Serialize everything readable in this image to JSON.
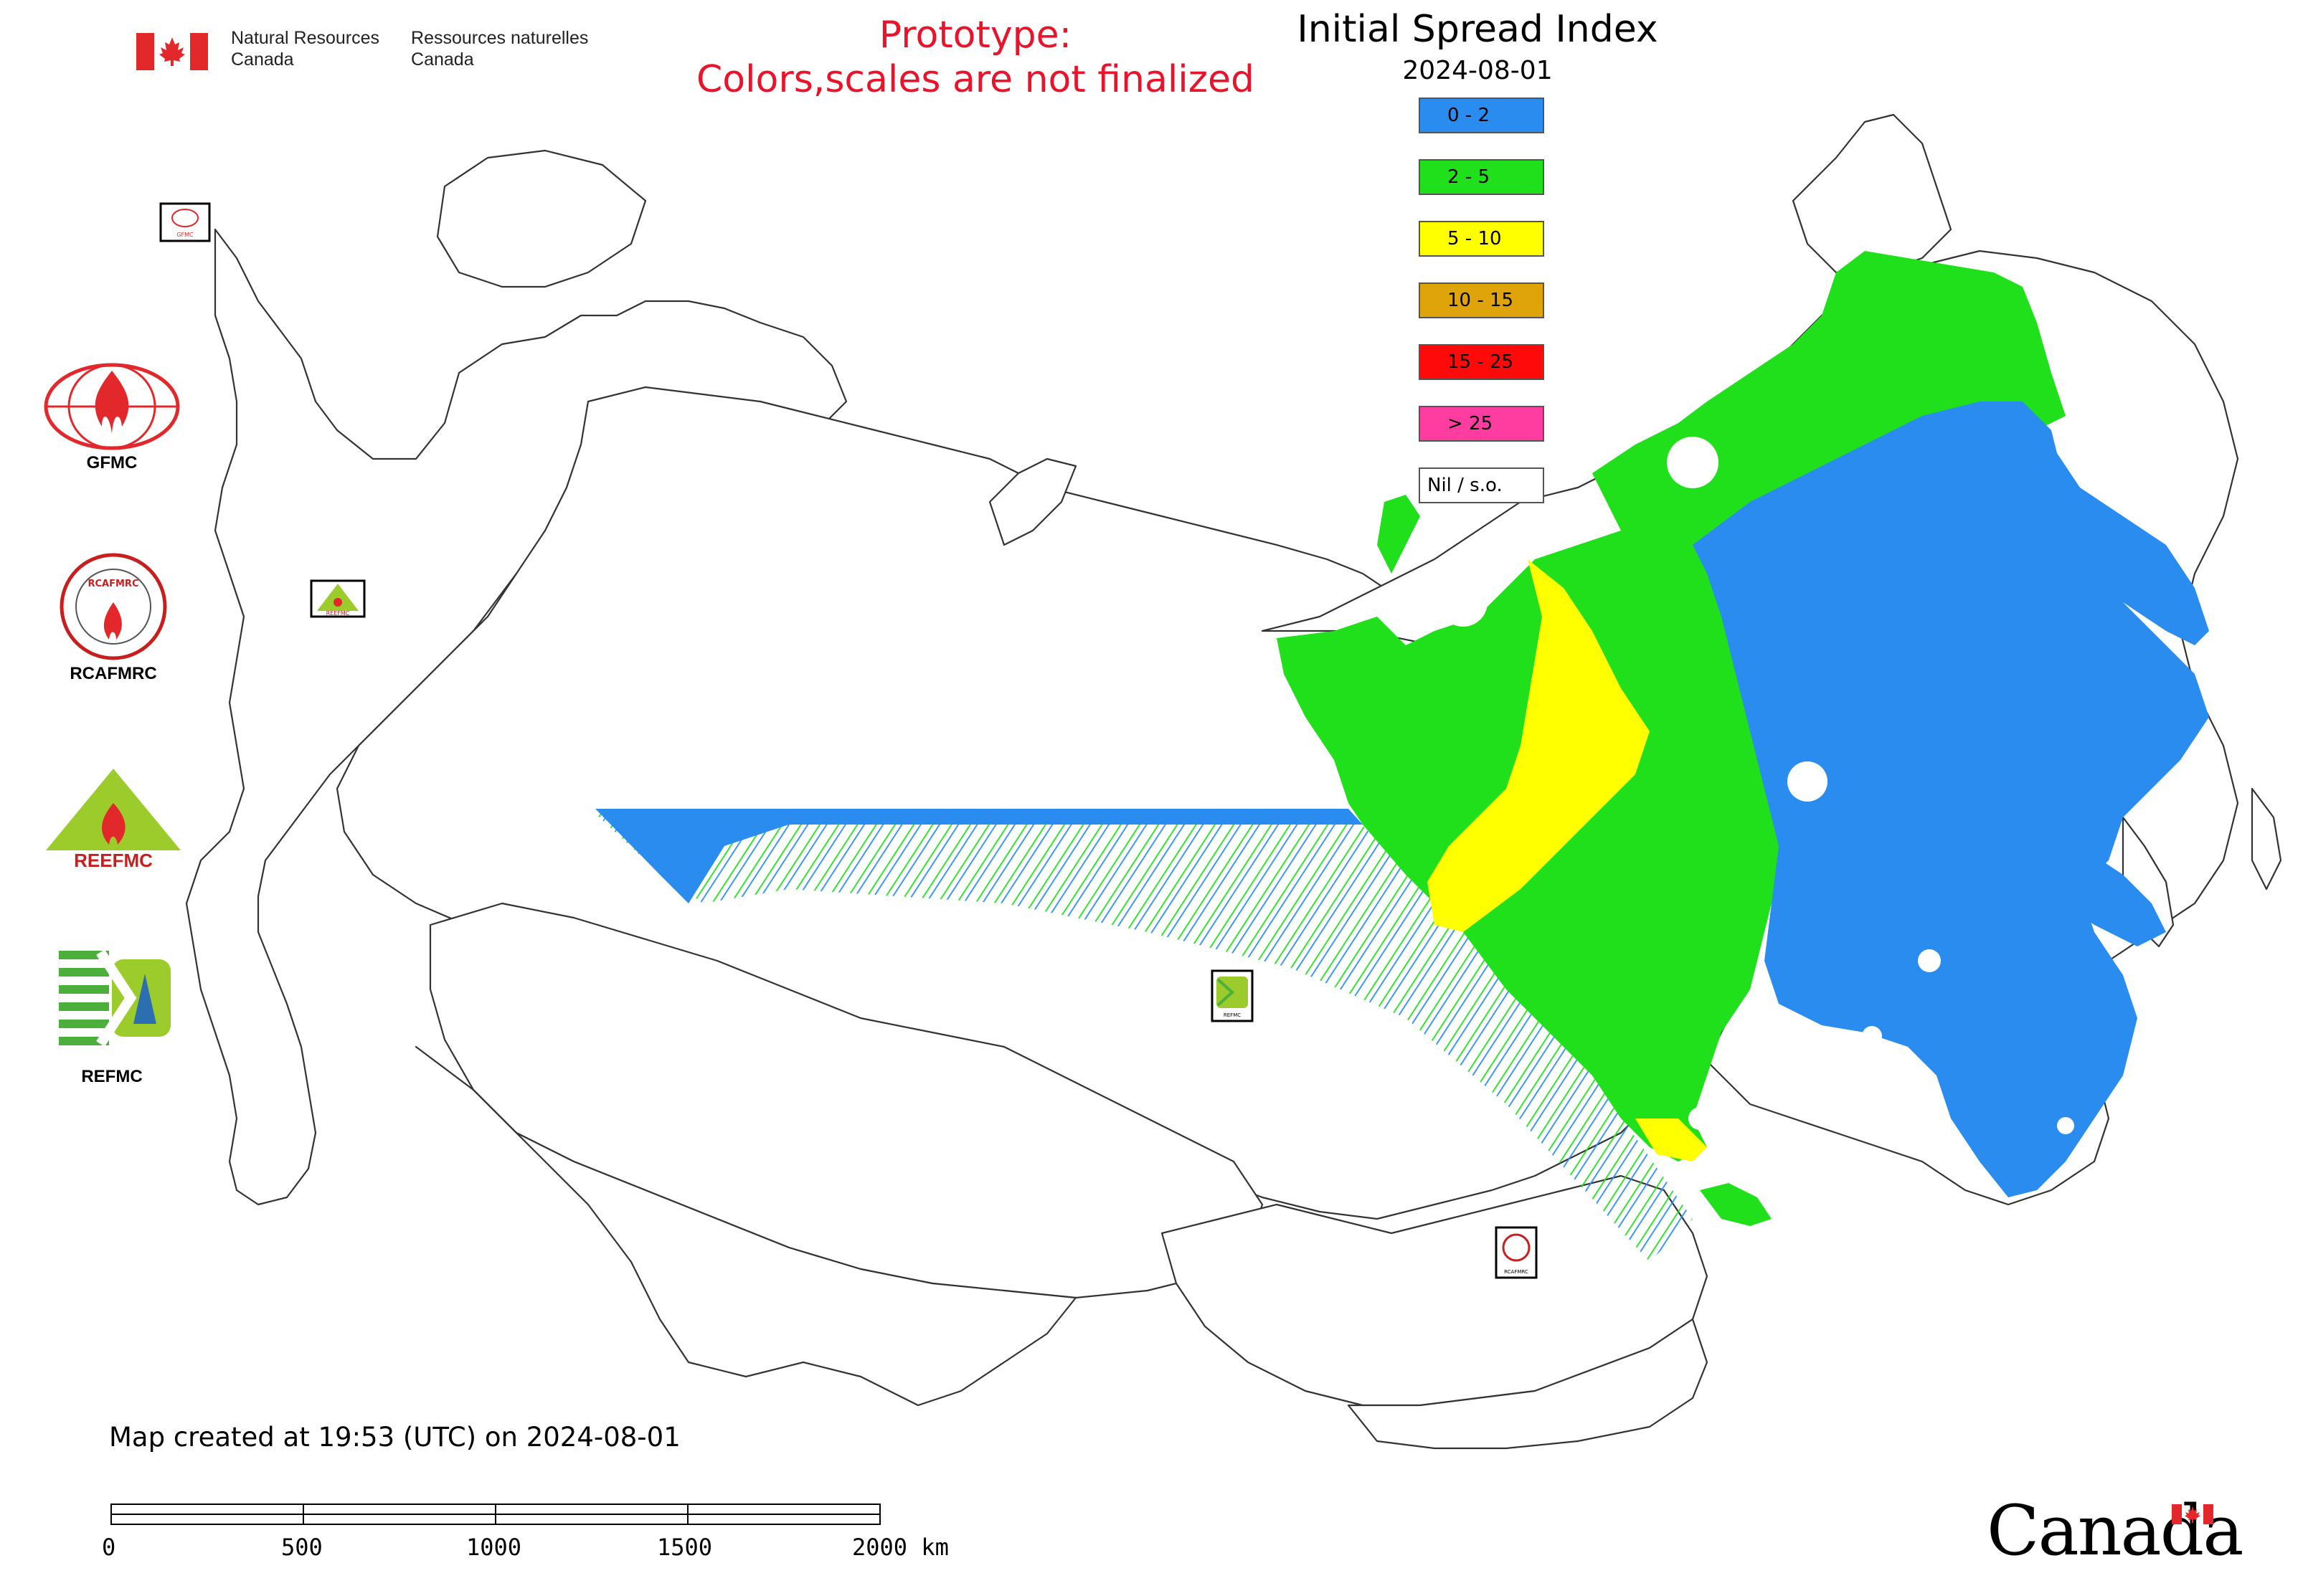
{
  "header": {
    "org_en_1": "Natural Resources",
    "org_en_2": "Canada",
    "org_fr_1": "Ressources naturelles",
    "org_fr_2": "Canada"
  },
  "notice": {
    "line1": "Prototype:",
    "line2": "Colors,scales are not finalized",
    "color": "#e8142b"
  },
  "title": "Initial Spread Index",
  "date": "2024-08-01",
  "legend": [
    {
      "label": "0 - 2",
      "color": "#2b8cf0"
    },
    {
      "label": "2 - 5",
      "color": "#1fe01b"
    },
    {
      "label": "5 - 10",
      "color": "#ffff00"
    },
    {
      "label": "10 - 15",
      "color": "#dfa40a"
    },
    {
      "label": "15 - 25",
      "color": "#ff0a0a"
    },
    {
      "label": "> 25",
      "color": "#ff3ca0"
    },
    {
      "label": "Nil / s.o.",
      "color": "#ffffff"
    }
  ],
  "logos": {
    "gfmc": "GFMC",
    "rcafmrc": "RCAFMRC",
    "reefmc": "REEFMC",
    "refmc": "REFMC",
    "rcafmrc_ring_text": "RCAFMRC",
    "reef_text": "REEFMC"
  },
  "map_markers": {
    "gfmc_small": "GFMC",
    "refmc_small": "REFMC",
    "rcafmrc_small": "RCAFMRC",
    "reefmc_small": "REEFMC"
  },
  "footer": {
    "created": "Map created at 19:53 (UTC) on 2024-08-01",
    "scale_labels": [
      "0",
      "500",
      "1000",
      "1500",
      "2000 km"
    ],
    "wordmark": "Canada"
  },
  "colors": {
    "flag_red": "#e3282b",
    "border": "#555555",
    "outline": "#333333"
  }
}
